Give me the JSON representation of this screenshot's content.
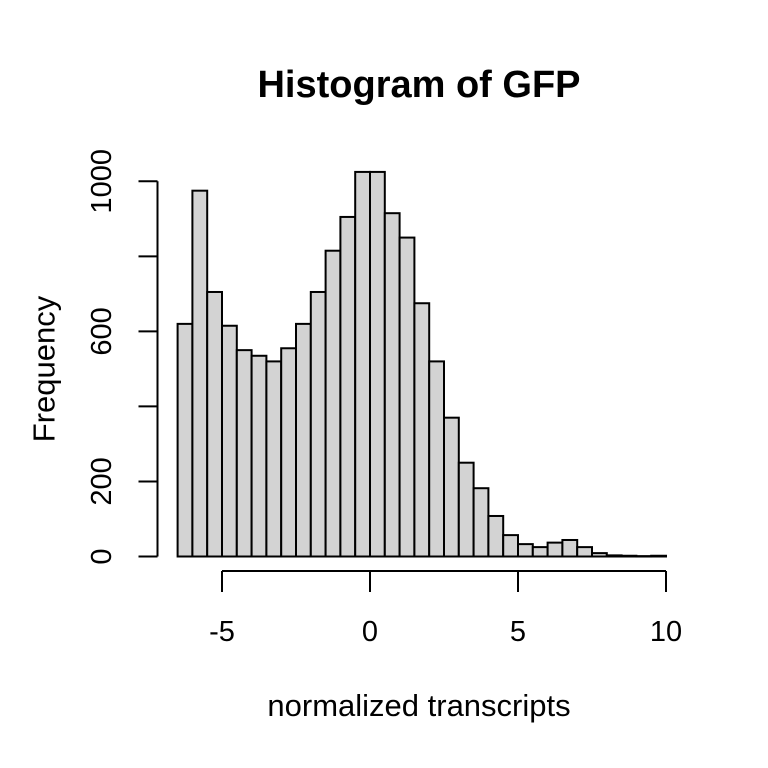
{
  "title": "Histogram of GFP",
  "chart_data": {
    "type": "bar",
    "subtype": "histogram",
    "title": "Histogram of GFP",
    "xlabel": "normalized transcripts",
    "ylabel": "Frequency",
    "bin_start": -6.5,
    "bin_width": 0.5,
    "counts": [
      620,
      975,
      705,
      615,
      550,
      535,
      520,
      555,
      620,
      705,
      815,
      905,
      1025,
      1025,
      915,
      850,
      675,
      520,
      370,
      250,
      182,
      108,
      57,
      33,
      25,
      37,
      44,
      25,
      9,
      3,
      2,
      1,
      2
    ],
    "xlim": [
      -6.5,
      10
    ],
    "ylim": [
      0,
      1030
    ],
    "x_ticks": [
      -5,
      0,
      5,
      10
    ],
    "x_tick_labels": [
      "-5",
      "0",
      "5",
      "10"
    ],
    "y_ticks": [
      0,
      200,
      400,
      600,
      800,
      1000
    ],
    "y_labeled_ticks": [
      0,
      200,
      600,
      1000
    ],
    "y_labeled_tick_labels": [
      "0",
      "200",
      "600",
      "1000"
    ],
    "grid": false,
    "legend_position": "none",
    "colors": {
      "bar_fill": "#d3d3d3",
      "bar_stroke": "#000000",
      "axis": "#000000",
      "text": "#000000",
      "background": "#ffffff"
    }
  }
}
